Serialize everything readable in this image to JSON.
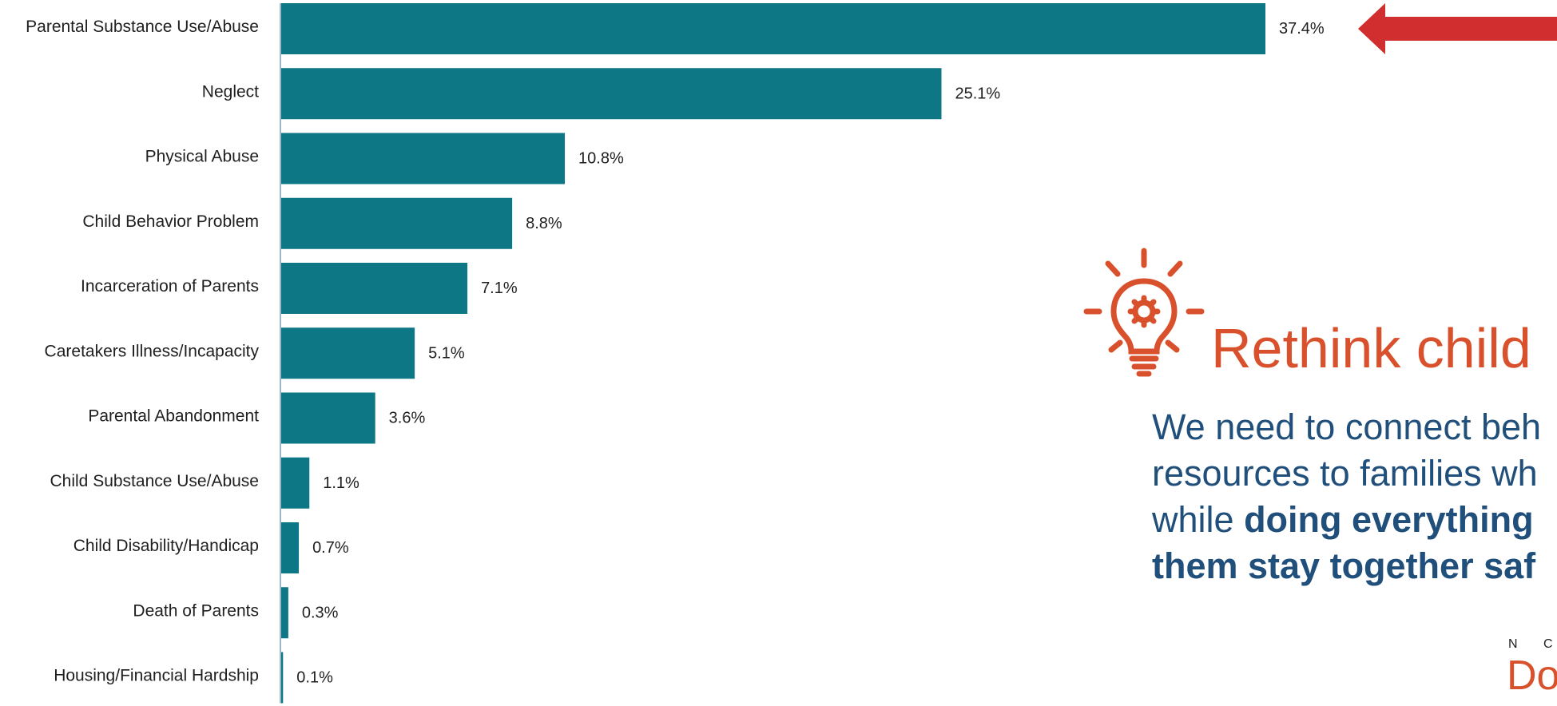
{
  "chart_data": {
    "type": "bar",
    "orientation": "horizontal",
    "categories": [
      "Parental Substance Use/Abuse",
      "Neglect",
      "Physical Abuse",
      "Child Behavior Problem",
      "Incarceration of Parents",
      "Caretakers Illness/Incapacity",
      "Parental Abandonment",
      "Child Substance Use/Abuse",
      "Child Disability/Handicap",
      "Death of Parents",
      "Housing/Financial Hardship"
    ],
    "values": [
      37.4,
      25.1,
      10.8,
      8.8,
      7.1,
      5.1,
      3.6,
      1.1,
      0.7,
      0.3,
      0.1
    ],
    "value_labels": [
      "37.4%",
      "25.1%",
      "10.8%",
      "8.8%",
      "7.1%",
      "5.1%",
      "3.6%",
      "1.1%",
      "0.7%",
      "0.3%",
      "0.1%"
    ],
    "xlim": [
      0,
      37.4
    ],
    "title": "",
    "xlabel": "",
    "ylabel": "",
    "grid": false,
    "legend": "none",
    "colors": {
      "bar": "#0e7785",
      "axis": "#9ab7c8",
      "arrow": "#d12f2f"
    },
    "annotations": [
      {
        "type": "arrow",
        "target_category": "Parental Substance Use/Abuse",
        "direction": "left"
      }
    ]
  },
  "callout": {
    "icon": "lightbulb-gear-icon",
    "title": "Rethink child",
    "body_regular_1": "We need to connect beh",
    "body_regular_2": "resources to families wh",
    "body_regular_3": "while ",
    "body_strong_1": "doing everything",
    "body_strong_2": "them stay together saf",
    "colors": {
      "title": "#d9512c",
      "body": "#1f4f7a",
      "icon": "#d9512c"
    }
  },
  "brand": {
    "small_text": "N C",
    "large_text": "Do"
  }
}
